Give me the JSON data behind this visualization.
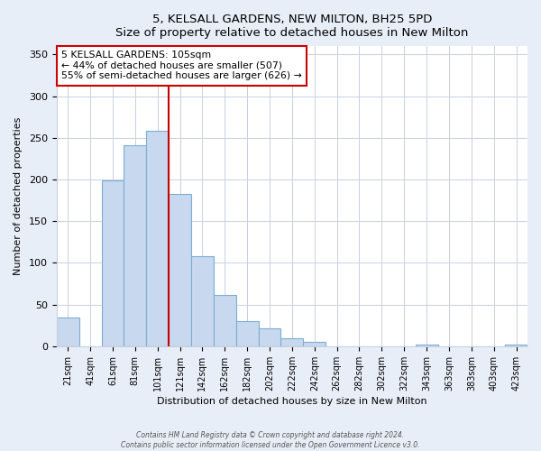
{
  "title": "5, KELSALL GARDENS, NEW MILTON, BH25 5PD",
  "subtitle": "Size of property relative to detached houses in New Milton",
  "xlabel": "Distribution of detached houses by size in New Milton",
  "ylabel": "Number of detached properties",
  "bar_labels": [
    "21sqm",
    "41sqm",
    "61sqm",
    "81sqm",
    "101sqm",
    "121sqm",
    "142sqm",
    "162sqm",
    "182sqm",
    "202sqm",
    "222sqm",
    "242sqm",
    "262sqm",
    "282sqm",
    "302sqm",
    "322sqm",
    "343sqm",
    "363sqm",
    "383sqm",
    "403sqm",
    "423sqm"
  ],
  "bar_values": [
    34,
    0,
    199,
    241,
    258,
    183,
    108,
    61,
    30,
    21,
    10,
    5,
    0,
    0,
    0,
    0,
    2,
    0,
    0,
    0,
    2
  ],
  "bar_color": "#c8d8ee",
  "bar_edge_color": "#7bafd4",
  "vline_x_index": 4,
  "vline_color": "#cc0000",
  "annotation_line1": "5 KELSALL GARDENS: 105sqm",
  "annotation_line2": "← 44% of detached houses are smaller (507)",
  "annotation_line3": "55% of semi-detached houses are larger (626) →",
  "annotation_box_color": "#ffffff",
  "annotation_box_edge": "#cc0000",
  "ylim": [
    0,
    360
  ],
  "yticks": [
    0,
    50,
    100,
    150,
    200,
    250,
    300,
    350
  ],
  "footer1": "Contains HM Land Registry data © Crown copyright and database right 2024.",
  "footer2": "Contains public sector information licensed under the Open Government Licence v3.0.",
  "bg_color": "#e8eef8",
  "plot_bg_color": "#ffffff",
  "grid_color": "#c8d0e0"
}
